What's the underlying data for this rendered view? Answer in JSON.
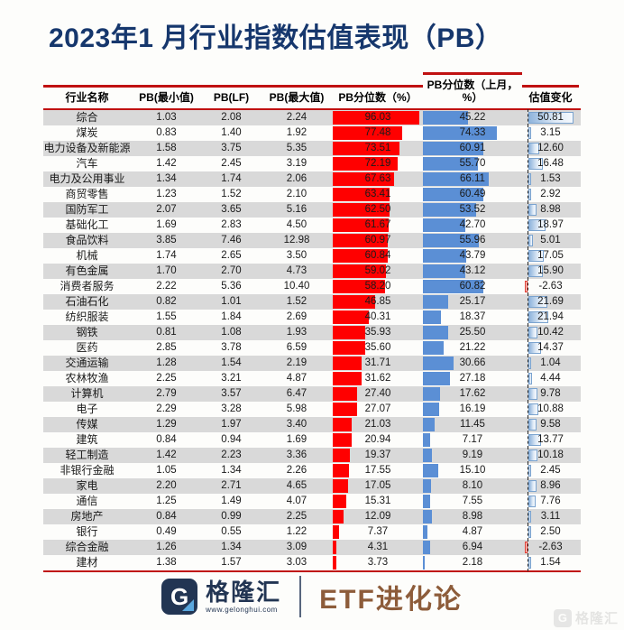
{
  "page": {
    "title": "2023年1 月行业指数估值表现（PB）"
  },
  "colors": {
    "title_navy": "#16376d",
    "line_red": "#c01111",
    "bar_red": "#ff0000",
    "bar_blue": "#5b8fd5",
    "stripe_gray": "#d9d9d9",
    "change_border": "#7aa3cf",
    "brand_navy": "#223553",
    "etf_brown": "#8d5c3a"
  },
  "table": {
    "headers": [
      "行业名称",
      "PB(最小值)",
      "PB(LF)",
      "PB(最大值)",
      "PB分位数（%）",
      "PB分位数（上月，%）",
      "估值变化"
    ]
  },
  "chart_data": {
    "type": "table",
    "title": "2023年1 月行业指数估值表现（PB）",
    "change_axis_max": 55,
    "percentile_range": [
      0,
      100
    ],
    "categories": [
      "综合",
      "煤炭",
      "电力设备及新能源",
      "汽车",
      "电力及公用事业",
      "商贸零售",
      "国防军工",
      "基础化工",
      "食品饮料",
      "机械",
      "有色金属",
      "消费者服务",
      "石油石化",
      "纺织服装",
      "钢铁",
      "医药",
      "交通运输",
      "农林牧渔",
      "计算机",
      "电子",
      "传媒",
      "建筑",
      "轻工制造",
      "非银行金融",
      "家电",
      "通信",
      "房地产",
      "银行",
      "综合金融",
      "建材"
    ],
    "series": [
      {
        "key": "pb_min",
        "name": "PB(最小值)",
        "values": [
          1.03,
          0.83,
          1.58,
          1.42,
          1.34,
          1.23,
          2.07,
          1.69,
          3.85,
          1.74,
          1.7,
          2.22,
          0.82,
          1.55,
          0.81,
          2.85,
          1.28,
          2.25,
          2.79,
          2.29,
          1.29,
          0.84,
          1.42,
          1.05,
          2.2,
          1.25,
          0.84,
          0.49,
          1.26,
          1.38
        ]
      },
      {
        "key": "pb_lf",
        "name": "PB(LF)",
        "values": [
          2.08,
          1.4,
          3.75,
          2.45,
          1.74,
          1.52,
          3.65,
          2.83,
          7.46,
          2.65,
          2.7,
          5.36,
          1.01,
          1.84,
          1.08,
          3.78,
          1.54,
          3.21,
          3.57,
          3.28,
          1.97,
          0.94,
          2.23,
          1.34,
          2.71,
          1.49,
          0.99,
          0.55,
          1.34,
          1.57
        ]
      },
      {
        "key": "pb_max",
        "name": "PB(最大值)",
        "values": [
          2.24,
          1.92,
          5.35,
          3.19,
          2.06,
          2.1,
          5.16,
          4.5,
          12.98,
          3.5,
          4.73,
          10.4,
          1.52,
          2.69,
          1.93,
          6.59,
          2.19,
          4.87,
          6.47,
          5.98,
          3.4,
          1.69,
          3.36,
          2.26,
          4.65,
          4.07,
          2.25,
          1.22,
          3.09,
          3.03
        ]
      },
      {
        "key": "pct",
        "name": "PB分位数（%）",
        "bar_color": "#ff0000",
        "values": [
          96.03,
          77.48,
          73.51,
          72.19,
          67.63,
          63.41,
          62.5,
          61.67,
          60.97,
          60.84,
          59.02,
          58.2,
          46.85,
          40.31,
          35.93,
          35.6,
          31.71,
          31.62,
          27.4,
          27.07,
          21.03,
          20.94,
          19.37,
          17.55,
          17.05,
          15.31,
          12.09,
          7.37,
          4.31,
          3.73
        ]
      },
      {
        "key": "pct_prev",
        "name": "PB分位数（上月，%）",
        "bar_color": "#5b8fd5",
        "values": [
          45.22,
          74.33,
          60.91,
          55.7,
          66.11,
          60.49,
          53.52,
          42.7,
          55.96,
          43.79,
          43.12,
          60.82,
          25.17,
          18.37,
          25.5,
          21.22,
          30.66,
          27.18,
          17.62,
          16.19,
          11.45,
          7.17,
          9.19,
          15.1,
          8.1,
          7.55,
          8.98,
          4.87,
          6.94,
          2.18
        ]
      },
      {
        "key": "change",
        "name": "估值变化",
        "bar_color": "#8fb4dc",
        "negative_bar_color": "#e03c31",
        "values": [
          50.81,
          3.15,
          12.6,
          16.48,
          1.53,
          2.92,
          8.98,
          18.97,
          5.01,
          17.05,
          15.9,
          -2.63,
          21.69,
          21.94,
          10.42,
          14.37,
          1.04,
          4.44,
          9.78,
          10.88,
          9.58,
          13.77,
          10.18,
          2.45,
          8.96,
          7.76,
          3.11,
          2.5,
          -2.63,
          1.54
        ]
      }
    ]
  },
  "footer": {
    "logo_letter": "G",
    "brand_name": "格隆汇",
    "brand_url": "www.gelonghui.com",
    "etf_label": "ETF进化论",
    "watermark_letter": "G",
    "watermark_text": "格隆汇"
  }
}
